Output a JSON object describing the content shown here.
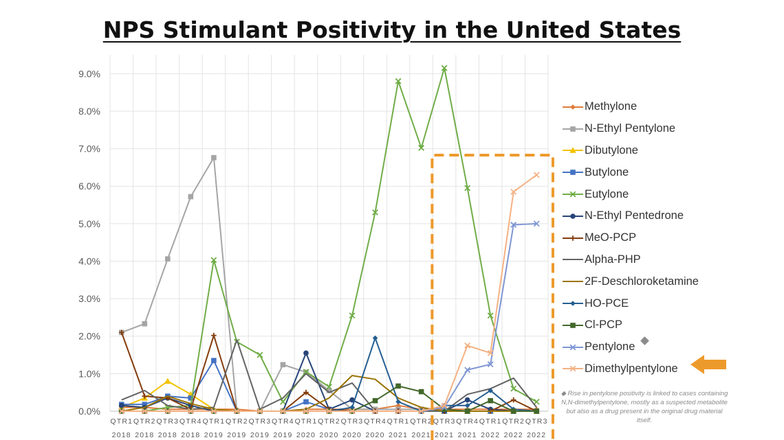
{
  "title": "NPS Stimulant Positivity in the United States",
  "chart_data": {
    "type": "line",
    "y_ticks": [
      "0.0%",
      "1.0%",
      "2.0%",
      "3.0%",
      "4.0%",
      "5.0%",
      "6.0%",
      "7.0%",
      "8.0%",
      "9.0%"
    ],
    "ylim": [
      0,
      9.5
    ],
    "grid": true,
    "legend_position": "right",
    "categories": [
      [
        "QTR1",
        "2018"
      ],
      [
        "QTR2",
        "2018"
      ],
      [
        "QTR3",
        "2018"
      ],
      [
        "QTR4",
        "2018"
      ],
      [
        "QTR1",
        "2019"
      ],
      [
        "QTR2",
        "2019"
      ],
      [
        "QTR3",
        "2019"
      ],
      [
        "QTR4",
        "2019"
      ],
      [
        "QTR1",
        "2020"
      ],
      [
        "QTR2",
        "2020"
      ],
      [
        "QTR3",
        "2020"
      ],
      [
        "QTR4",
        "2020"
      ],
      [
        "QTR1",
        "2021"
      ],
      [
        "QTR2",
        "2021"
      ],
      [
        "QTR3",
        "2021"
      ],
      [
        "QTR4",
        "2021"
      ],
      [
        "QTR1",
        "2022"
      ],
      [
        "QTR2",
        "2022"
      ],
      [
        "QTR3",
        "2022"
      ]
    ],
    "series": [
      {
        "name": "Methylone",
        "color": "#E07B39",
        "marker": "diamond",
        "values": [
          0.1,
          0.1,
          0.05,
          0.05,
          0.05,
          0.05,
          0,
          0,
          0.05,
          0.05,
          0.05,
          0.05,
          0.15,
          0.05,
          0.05,
          0.05,
          0.05,
          0.05,
          0.05
        ]
      },
      {
        "name": "N-Ethyl Pentylone",
        "color": "#A5A5A5",
        "marker": "square",
        "values": [
          2.1,
          2.33,
          4.06,
          5.72,
          6.76,
          0,
          0,
          1.24,
          1.04,
          0.55,
          0.05,
          0.05,
          0.05,
          0.05,
          0,
          0,
          0,
          0,
          0
        ]
      },
      {
        "name": "Dibutylone",
        "color": "#F2C300",
        "marker": "triangle",
        "values": [
          0.1,
          0.35,
          0.8,
          0.45,
          0.05,
          0,
          0,
          0,
          0,
          0,
          0,
          0,
          0,
          0,
          0,
          0,
          0,
          0,
          0
        ]
      },
      {
        "name": "Butylone",
        "color": "#4472C4",
        "marker": "square",
        "values": [
          0.18,
          0.18,
          0.4,
          0.35,
          1.35,
          0,
          0,
          0,
          0.25,
          0.05,
          0,
          0,
          0,
          0,
          0,
          0,
          0,
          0,
          0
        ]
      },
      {
        "name": "Eutylone",
        "color": "#70AD47",
        "marker": "x",
        "values": [
          0,
          0,
          0.1,
          0.15,
          4.03,
          1.85,
          1.5,
          0.25,
          1.05,
          0.65,
          2.55,
          5.3,
          8.8,
          7.02,
          9.15,
          5.95,
          2.55,
          0.6,
          0.25
        ]
      },
      {
        "name": "N-Ethyl Pentedrone",
        "color": "#264478",
        "marker": "circle",
        "values": [
          0.15,
          0.1,
          0.35,
          0.15,
          0,
          0,
          0,
          0,
          1.55,
          0.05,
          0.3,
          0,
          0,
          0,
          0,
          0.3,
          0.05,
          0,
          0
        ]
      },
      {
        "name": "MeO-PCP",
        "color": "#843C0C",
        "marker": "plus",
        "values": [
          2.1,
          0.4,
          0.35,
          0.05,
          2.02,
          0,
          0,
          0,
          0.5,
          0.05,
          0,
          0,
          0,
          0,
          0,
          0,
          0,
          0.3,
          0
        ]
      },
      {
        "name": "Alpha-PHP",
        "color": "#636363",
        "marker": "none",
        "values": [
          0.3,
          0.55,
          0.15,
          0.05,
          0.1,
          1.9,
          0.05,
          0.35,
          1.0,
          0.5,
          0.75,
          0,
          0,
          0,
          0,
          0.45,
          0.6,
          0.88,
          0.1
        ]
      },
      {
        "name": "2F-Deschloroketamine",
        "color": "#997300",
        "marker": "none",
        "values": [
          0,
          0.1,
          0.4,
          0.2,
          0.05,
          0,
          0,
          0,
          0.05,
          0.35,
          0.95,
          0.85,
          0.35,
          0.1,
          0,
          0,
          0,
          0,
          0
        ]
      },
      {
        "name": "HO-PCE",
        "color": "#255E91",
        "marker": "diamond",
        "values": [
          0,
          0,
          0,
          0,
          0,
          0,
          0,
          0,
          0,
          0,
          0.1,
          1.95,
          0.25,
          0,
          0.15,
          0.15,
          0.55,
          0.05,
          0
        ]
      },
      {
        "name": "Cl-PCP",
        "color": "#43682B",
        "marker": "square",
        "values": [
          0,
          0,
          0,
          0,
          0,
          0,
          0,
          0,
          0,
          0,
          0,
          0.28,
          0.67,
          0.52,
          0.05,
          0,
          0.28,
          0,
          0
        ]
      },
      {
        "name": "Pentylone",
        "color": "#7F96D4",
        "marker": "x",
        "values": [
          0,
          0,
          0,
          0,
          0,
          0,
          0,
          0,
          0,
          0,
          0,
          0,
          0,
          0,
          0.1,
          1.1,
          1.25,
          4.97,
          5.0
        ]
      },
      {
        "name": "Dimethylpentylone",
        "color": "#F4B183",
        "marker": "x",
        "values": [
          0,
          0,
          0,
          0,
          0,
          0,
          0,
          0,
          0,
          0,
          0,
          0,
          0,
          0,
          0.15,
          1.75,
          1.55,
          5.85,
          6.3
        ]
      }
    ],
    "highlight": {
      "start_category": "QTR3 2021",
      "end_category": "QTR3 2022",
      "color": "#ED9A2C"
    },
    "footnote": "◆ Rise in pentylone positivity is linked to cases containing N,N-dimethylpentylone, mostly as a suspected metabolite but also as a drug present in the original drug material itself.",
    "arrow_target": "Dimethylpentylone"
  }
}
